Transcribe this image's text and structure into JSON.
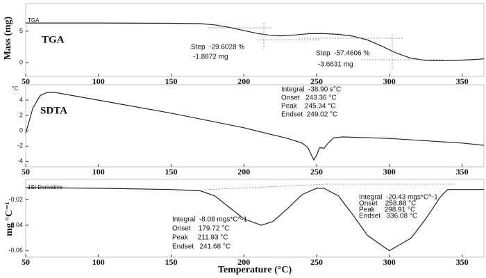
{
  "chart_data": [
    {
      "type": "line",
      "title": "TGA",
      "ylabel": "Mass (mg)",
      "x": [
        50,
        100,
        150,
        170,
        180,
        190,
        200,
        210,
        220,
        225,
        235,
        245,
        255,
        265,
        275,
        285,
        295,
        305,
        315,
        325,
        335,
        345,
        355,
        365
      ],
      "series": [
        {
          "name": "TGA",
          "color": "#222222",
          "values": [
            6.3,
            6.3,
            6.25,
            6.2,
            6.0,
            5.6,
            5.1,
            4.6,
            4.3,
            4.25,
            4.4,
            4.6,
            4.6,
            4.5,
            4.2,
            3.6,
            2.6,
            1.5,
            0.7,
            0.35,
            0.3,
            0.35,
            0.45,
            0.6
          ]
        }
      ],
      "xlim": [
        50,
        365
      ],
      "xticks": [
        50,
        100,
        150,
        200,
        250,
        300,
        350
      ],
      "ylim": [
        -2.2,
        9.4
      ],
      "yticks": [
        0,
        5
      ],
      "annotations": [
        "Step  -29.6028 %",
        "-1.8872 mg",
        "Step  -57.4606 %",
        "-3.6631 mg"
      ]
    },
    {
      "type": "line",
      "title": "SDTA",
      "ylabel": "°C",
      "x": [
        50,
        52,
        55,
        60,
        65,
        70,
        100,
        150,
        200,
        230,
        240,
        244,
        246,
        248,
        250,
        252,
        255,
        258,
        262,
        268,
        300,
        350,
        365
      ],
      "values": [
        -0.3,
        1,
        3,
        4.6,
        5,
        5,
        4,
        2.3,
        0.4,
        -1.0,
        -1.6,
        -2.2,
        -3,
        -3.8,
        -3.2,
        -2.2,
        -2.3,
        -1.6,
        -0.9,
        -0.8,
        -1.0,
        -1.6,
        -1.9
      ],
      "color": "#222222",
      "xlim": [
        50,
        365
      ],
      "xticks": [
        50,
        100,
        150,
        200,
        250,
        300,
        350
      ],
      "ylim": [
        -4.7,
        6
      ],
      "yticks": [
        -4,
        -2,
        0,
        2,
        4
      ],
      "annotations": [
        "Integral  -38.90 s°C",
        "Onset   243.36 °C",
        "Peak    245.34 °C",
        "Endset  249.02 °C"
      ]
    },
    {
      "type": "line",
      "ylabel": "mg °C⁻¹",
      "xlabel": "Temperature (°C)",
      "x": [
        50,
        100,
        150,
        170,
        180,
        190,
        200,
        212,
        220,
        230,
        240,
        250,
        255,
        265,
        275,
        285,
        300,
        315,
        325,
        335,
        340,
        350,
        365
      ],
      "series": [
        {
          "name": "1St Derivative",
          "color": "#222222",
          "values": [
            -0.0105,
            -0.011,
            -0.012,
            -0.013,
            -0.017,
            -0.026,
            -0.035,
            -0.04,
            -0.037,
            -0.027,
            -0.016,
            -0.011,
            -0.011,
            -0.017,
            -0.032,
            -0.048,
            -0.06,
            -0.05,
            -0.035,
            -0.018,
            -0.012,
            -0.012,
            -0.012
          ]
        }
      ],
      "xlim": [
        50,
        365
      ],
      "xticks": [
        50,
        100,
        150,
        200,
        250,
        300,
        350
      ],
      "ylim": [
        -0.065,
        -0.004
      ],
      "yticks": [
        -0.06,
        -0.04,
        -0.02
      ],
      "annotations": [
        "Integral  -8.08 mgs*C^-1",
        "Onset    179.72 °C",
        "Peak     211.93 °C",
        "Endset   241.68 °C",
        "Integral  -20.43 mgs*C^-1",
        "Onset    258.88 °C",
        "Peak     298.91 °C",
        "Endset   336.08 °C"
      ]
    }
  ]
}
